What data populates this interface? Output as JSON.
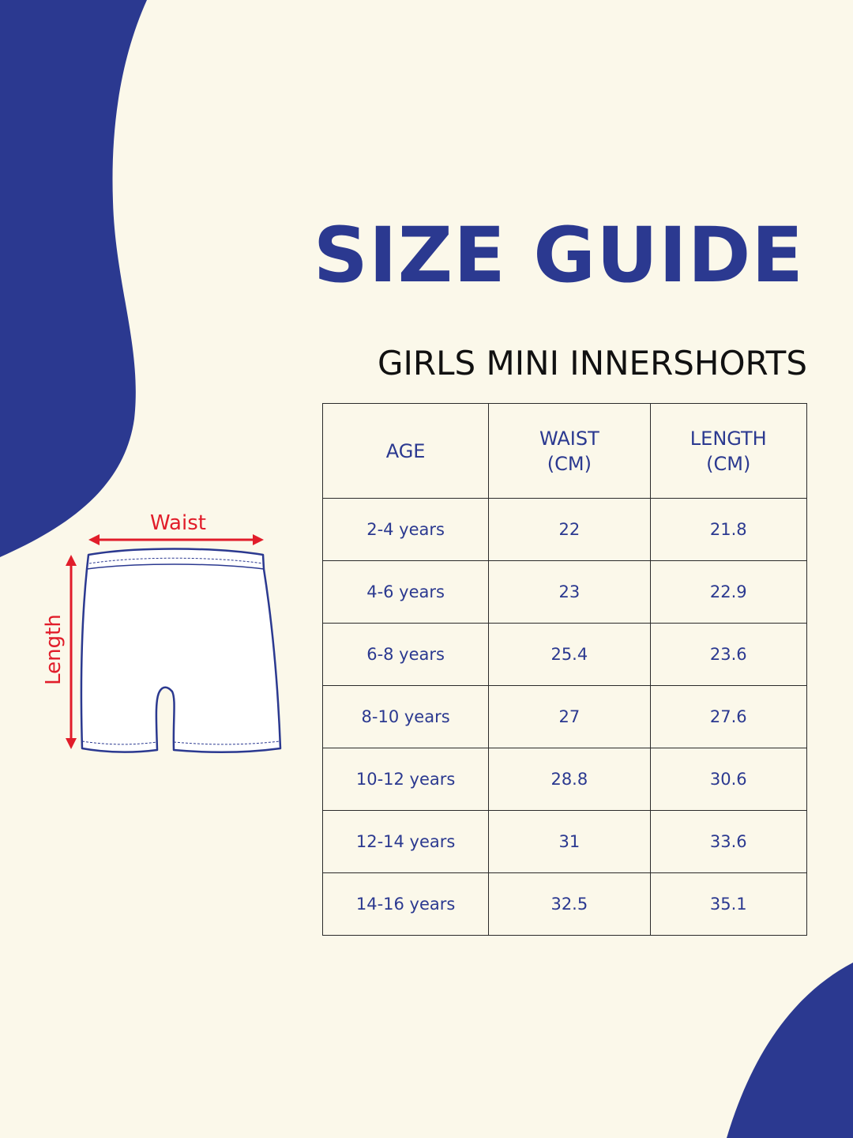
{
  "colors": {
    "brand_blue": "#2b3990",
    "background": "#fbf8ea",
    "measure_red": "#e11d2a",
    "text_dark": "#111111"
  },
  "title": "SIZE GUIDE",
  "subtitle": "GIRLS MINI INNERSHORTS",
  "diagram": {
    "waist_label": "Waist",
    "length_label": "Length",
    "icon": "shorts-outline-icon"
  },
  "table": {
    "headers": {
      "age": "AGE",
      "waist_line1": "WAIST",
      "waist_line2": "(CM)",
      "length_line1": "LENGTH",
      "length_line2": "(CM)"
    },
    "rows": [
      {
        "age": "2-4 years",
        "waist": "22",
        "length": "21.8"
      },
      {
        "age": "4-6 years",
        "waist": "23",
        "length": "22.9"
      },
      {
        "age": "6-8 years",
        "waist": "25.4",
        "length": "23.6"
      },
      {
        "age": "8-10 years",
        "waist": "27",
        "length": "27.6"
      },
      {
        "age": "10-12 years",
        "waist": "28.8",
        "length": "30.6"
      },
      {
        "age": "12-14 years",
        "waist": "31",
        "length": "33.6"
      },
      {
        "age": "14-16 years",
        "waist": "32.5",
        "length": "35.1"
      }
    ]
  }
}
